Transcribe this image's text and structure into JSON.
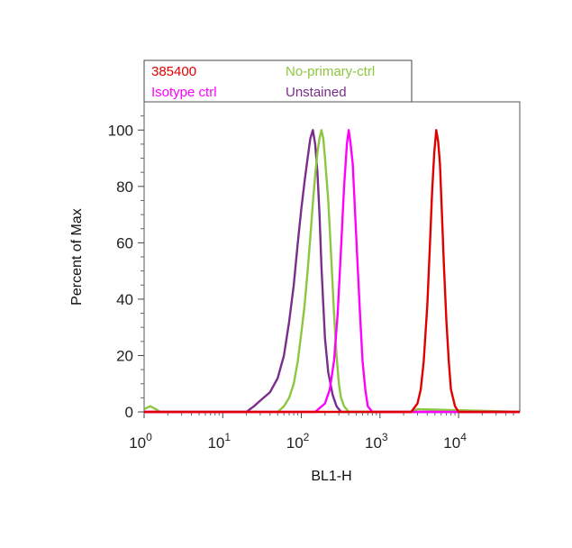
{
  "chart_data": {
    "type": "line",
    "xlabel": "BL1-H",
    "ylabel": "Percent of Max",
    "xscale": "log",
    "xlim": [
      1,
      60000
    ],
    "ylim": [
      0,
      110
    ],
    "grid": false,
    "legend_position": "top",
    "x_ticks": [
      {
        "value": 1,
        "base": "10",
        "exp": "0"
      },
      {
        "value": 10,
        "base": "10",
        "exp": "1"
      },
      {
        "value": 100,
        "base": "10",
        "exp": "2"
      },
      {
        "value": 1000,
        "base": "10",
        "exp": "3"
      },
      {
        "value": 10000,
        "base": "10",
        "exp": "4"
      }
    ],
    "y_ticks": [
      {
        "value": 0,
        "label": "0"
      },
      {
        "value": 20,
        "label": "20"
      },
      {
        "value": 40,
        "label": "40"
      },
      {
        "value": 60,
        "label": "60"
      },
      {
        "value": 80,
        "label": "80"
      },
      {
        "value": 100,
        "label": "100"
      }
    ],
    "series": [
      {
        "name": "Unstained",
        "color": "#7b2d8b",
        "x": [
          1,
          10,
          20,
          25,
          30,
          40,
          50,
          60,
          70,
          80,
          90,
          100,
          110,
          120,
          130,
          140,
          150,
          160,
          170,
          180,
          190,
          200,
          220,
          250,
          280,
          320,
          400,
          1000,
          60000
        ],
        "y": [
          0,
          0,
          0,
          2,
          4,
          7,
          12,
          20,
          32,
          45,
          60,
          72,
          82,
          90,
          97,
          100,
          95,
          85,
          70,
          52,
          38,
          26,
          14,
          6,
          2,
          0,
          0,
          0,
          0
        ]
      },
      {
        "name": "No-primary-ctrl",
        "color": "#8dc63f",
        "x": [
          1,
          1.2,
          1.4,
          1.6,
          2,
          50,
          60,
          70,
          80,
          90,
          100,
          110,
          120,
          130,
          140,
          150,
          160,
          170,
          180,
          190,
          200,
          220,
          240,
          260,
          280,
          300,
          320,
          350,
          400,
          1000,
          2500,
          3000,
          60000
        ],
        "y": [
          1,
          2,
          1,
          0,
          0,
          0,
          2,
          5,
          10,
          18,
          28,
          38,
          50,
          62,
          74,
          84,
          92,
          97,
          100,
          97,
          90,
          75,
          55,
          35,
          20,
          10,
          5,
          2,
          0,
          0,
          0,
          1,
          0
        ]
      },
      {
        "name": "Isotype ctrl",
        "color": "#ff00ff",
        "x": [
          1,
          150,
          200,
          230,
          260,
          290,
          320,
          350,
          380,
          400,
          420,
          450,
          480,
          520,
          560,
          600,
          650,
          700,
          800,
          60000
        ],
        "y": [
          0,
          0,
          3,
          8,
          18,
          35,
          58,
          80,
          95,
          100,
          96,
          88,
          72,
          52,
          34,
          18,
          8,
          2,
          0,
          0
        ]
      },
      {
        "name": "385400",
        "color": "#e00000",
        "x": [
          1,
          2500,
          3000,
          3300,
          3600,
          4000,
          4300,
          4600,
          4900,
          5200,
          5500,
          5800,
          6100,
          6500,
          7000,
          7500,
          8000,
          9000,
          10000,
          60000
        ],
        "y": [
          0,
          0,
          3,
          8,
          18,
          38,
          58,
          78,
          92,
          100,
          96,
          88,
          72,
          52,
          32,
          18,
          8,
          2,
          0,
          0
        ]
      }
    ]
  }
}
